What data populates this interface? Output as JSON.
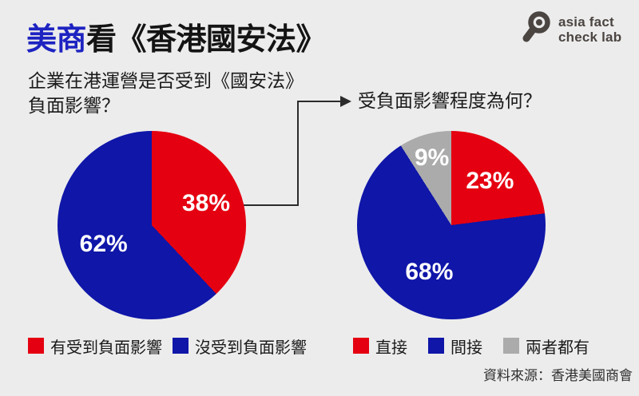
{
  "page": {
    "background_color": "#ececec"
  },
  "header": {
    "title": {
      "highlight": "美商",
      "rest": "看《香港國安法》",
      "highlight_color": "#1d23c1",
      "text_color": "#141414"
    },
    "logo": {
      "icon": "magnifier-icon",
      "line1": "asia fact",
      "line2": "check lab",
      "color": "#4b4542"
    }
  },
  "chart_data": [
    {
      "type": "pie",
      "title": "企業在港運營是否受到《國安法》負面影響？",
      "title_lines": [
        "企業在港運營是否受到《國安法》",
        "負面影響？"
      ],
      "labels": [
        "有受到負面影響",
        "沒受到負面影響"
      ],
      "values": [
        38,
        62
      ],
      "value_labels": [
        "38%",
        "62%"
      ],
      "colors": [
        "#e50011",
        "#0f16a8"
      ],
      "label_text_color": "#ffffff",
      "start_angle": "top",
      "direction": "clockwise",
      "legend_position": "bottom"
    },
    {
      "type": "pie",
      "title": "受負面影響程度為何？",
      "title_lines": [
        "受負面影響程度為何？"
      ],
      "labels": [
        "直接",
        "間接",
        "兩者都有"
      ],
      "values": [
        23,
        68,
        9
      ],
      "value_labels": [
        "23%",
        "68%",
        "9%"
      ],
      "colors": [
        "#e50011",
        "#0f16a8",
        "#ababab"
      ],
      "label_text_color": "#ffffff",
      "start_angle": "top",
      "direction": "clockwise",
      "legend_position": "bottom"
    }
  ],
  "footer": {
    "source": "資料來源：香港美國商會"
  }
}
